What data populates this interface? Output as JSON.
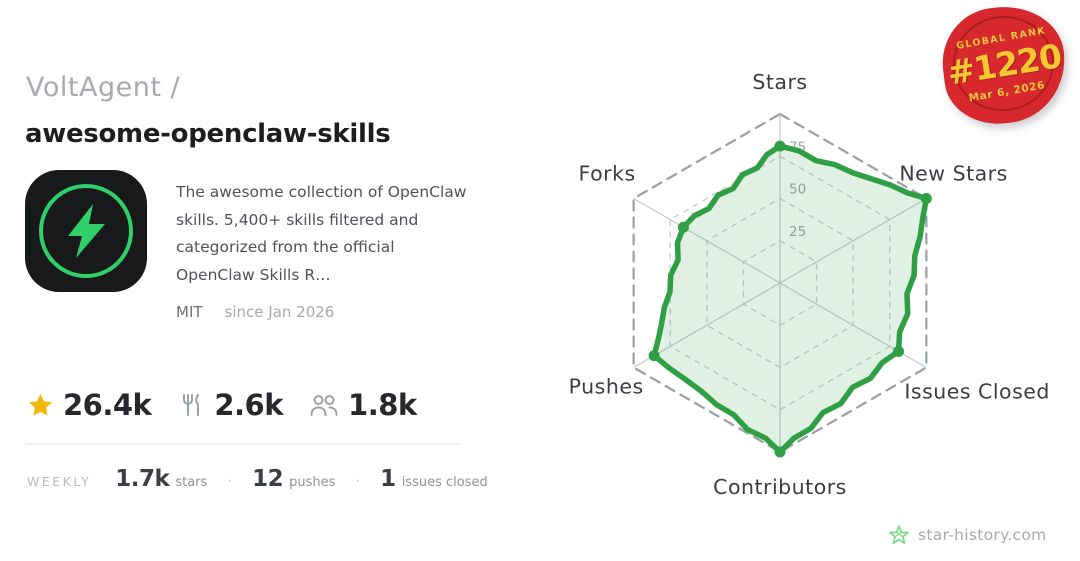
{
  "header": {
    "owner": "VoltAgent /",
    "repo": "awesome-openclaw-skills"
  },
  "about": {
    "description": "The awesome collection of OpenClaw skills. 5,400+ skills filtered and categorized from the official OpenClaw Skills R…",
    "license": "MIT",
    "since": "since Jan 2026"
  },
  "stats": {
    "stars": "26.4k",
    "forks": "2.6k",
    "contributors": "1.8k"
  },
  "weekly": {
    "label": "WEEKLY",
    "separator": "·",
    "items": [
      {
        "value": "1.7k",
        "unit": "stars"
      },
      {
        "value": "12",
        "unit": "pushes"
      },
      {
        "value": "1",
        "unit": "issues closed"
      }
    ]
  },
  "rank_stamp": {
    "title": "GLOBAL RANK",
    "rank": "#1220",
    "date": "Mar 6, 2026",
    "bg_color": "#d7282d",
    "text_color": "#f0c63c"
  },
  "footer": {
    "brand": "star-history.com"
  },
  "icons": {
    "star": "star-icon",
    "fork": "fork-cutlery-icon",
    "people": "contributors-icon",
    "logo_star": "star-history-logo-icon"
  },
  "colors": {
    "accent_green": "#2f9e44",
    "avatar_green": "#2fd068",
    "star_yellow": "#f2b705",
    "grid_gray": "#9aa1a8",
    "grid_light": "#c9ced3",
    "label_dark": "#3a3e44",
    "tick_gray": "#9aa1a8"
  },
  "chart_data": {
    "type": "radar",
    "title": "",
    "categories": [
      "Stars",
      "New Stars",
      "Issues Closed",
      "Contributors",
      "Pushes",
      "Forks"
    ],
    "values": [
      81,
      100,
      81,
      100,
      86,
      66
    ],
    "max": 100,
    "ticks": [
      25,
      50,
      75
    ],
    "grid": "dashed-hexagon-rings",
    "legend": "none",
    "series_color": "#2f9e44",
    "fill_color": "rgba(47,158,68,0.15)"
  }
}
